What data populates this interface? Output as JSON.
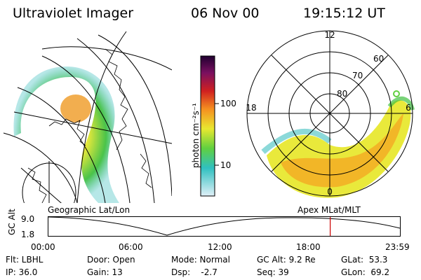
{
  "header": {
    "instrument": "Ultraviolet Imager",
    "date": "06 Nov 00",
    "time": "19:15:12 UT"
  },
  "colorbar": {
    "label": "photon cm⁻²s⁻¹",
    "ticks": [
      "100",
      "10"
    ]
  },
  "polar": {
    "lat_labels": [
      "80",
      "70",
      "60"
    ],
    "mlt_labels": [
      "12",
      "18",
      "6",
      "0"
    ]
  },
  "timeline": {
    "left_title": "Geographic Lat/Lon",
    "right_title": "Apex MLat/MLT",
    "axis_name": "GC Alt",
    "y_ticks": [
      "9.0",
      "1.8"
    ],
    "x_ticks": [
      "00:00",
      "06:00",
      "12:00",
      "18:00",
      "23:59"
    ],
    "current_time_fraction": 0.8
  },
  "info": {
    "flt": "Flt: LBHL",
    "ip": "IP: 36.0",
    "door": "Door: Open",
    "gain": "Gain: 13",
    "mode": "Mode: Normal",
    "dsp": "Dsp:    -2.7",
    "gc_alt": "GC Alt: 9.2 Re",
    "seq": "Seq: 39",
    "glat": "GLat:  53.3",
    "glon": "GLon:  69.2"
  },
  "colors": {
    "marker": "#cc0000"
  }
}
